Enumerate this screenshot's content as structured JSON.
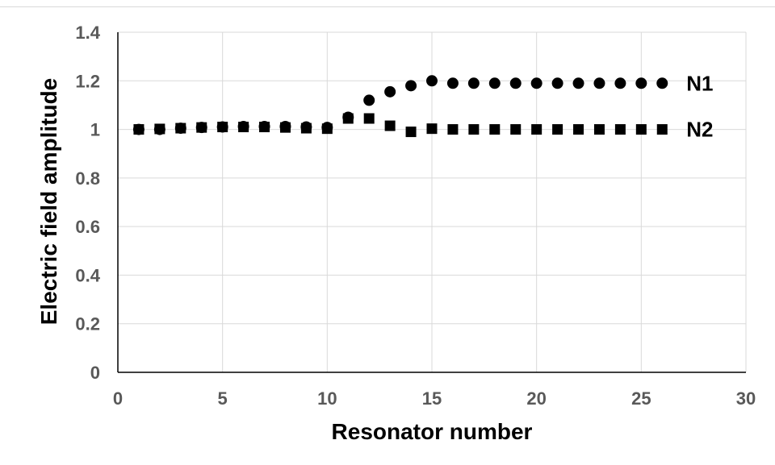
{
  "chart_data": {
    "type": "scatter",
    "title": "",
    "xlabel": "Resonator number",
    "ylabel": "Electric field amplitude",
    "xlim": [
      0,
      30
    ],
    "ylim": [
      0,
      1.4
    ],
    "xticks": [
      "0",
      "5",
      "10",
      "15",
      "20",
      "25",
      "30"
    ],
    "yticks": [
      "0",
      "0.2",
      "0.4",
      "0.6",
      "0.8",
      "1",
      "1.2",
      "1.4"
    ],
    "grid": true,
    "legend": "none",
    "series": [
      {
        "name": "N1",
        "marker": "circle",
        "color": "#000000",
        "x": [
          1,
          2,
          3,
          4,
          5,
          6,
          7,
          8,
          9,
          10,
          11,
          12,
          13,
          14,
          15,
          16,
          17,
          18,
          19,
          20,
          21,
          22,
          23,
          24,
          25,
          26
        ],
        "y": [
          1.0,
          1.0,
          1.005,
          1.008,
          1.01,
          1.012,
          1.012,
          1.012,
          1.01,
          1.008,
          1.05,
          1.12,
          1.155,
          1.18,
          1.2,
          1.19,
          1.19,
          1.19,
          1.19,
          1.19,
          1.19,
          1.19,
          1.19,
          1.19,
          1.19,
          1.19
        ]
      },
      {
        "name": "N2",
        "marker": "square",
        "color": "#000000",
        "x": [
          1,
          2,
          3,
          4,
          5,
          6,
          7,
          8,
          9,
          10,
          11,
          12,
          13,
          14,
          15,
          16,
          17,
          18,
          19,
          20,
          21,
          22,
          23,
          24,
          25,
          26
        ],
        "y": [
          1.0,
          1.002,
          1.005,
          1.008,
          1.01,
          1.01,
          1.01,
          1.008,
          1.005,
          1.003,
          1.045,
          1.045,
          1.015,
          0.99,
          1.003,
          1.0,
          1.0,
          1.0,
          1.0,
          1.0,
          1.0,
          1.0,
          1.0,
          1.0,
          1.0,
          1.0
        ]
      }
    ],
    "colors": {
      "grid": "#d9d9d9",
      "axis": "#000000",
      "tick_text": "#595959"
    }
  }
}
